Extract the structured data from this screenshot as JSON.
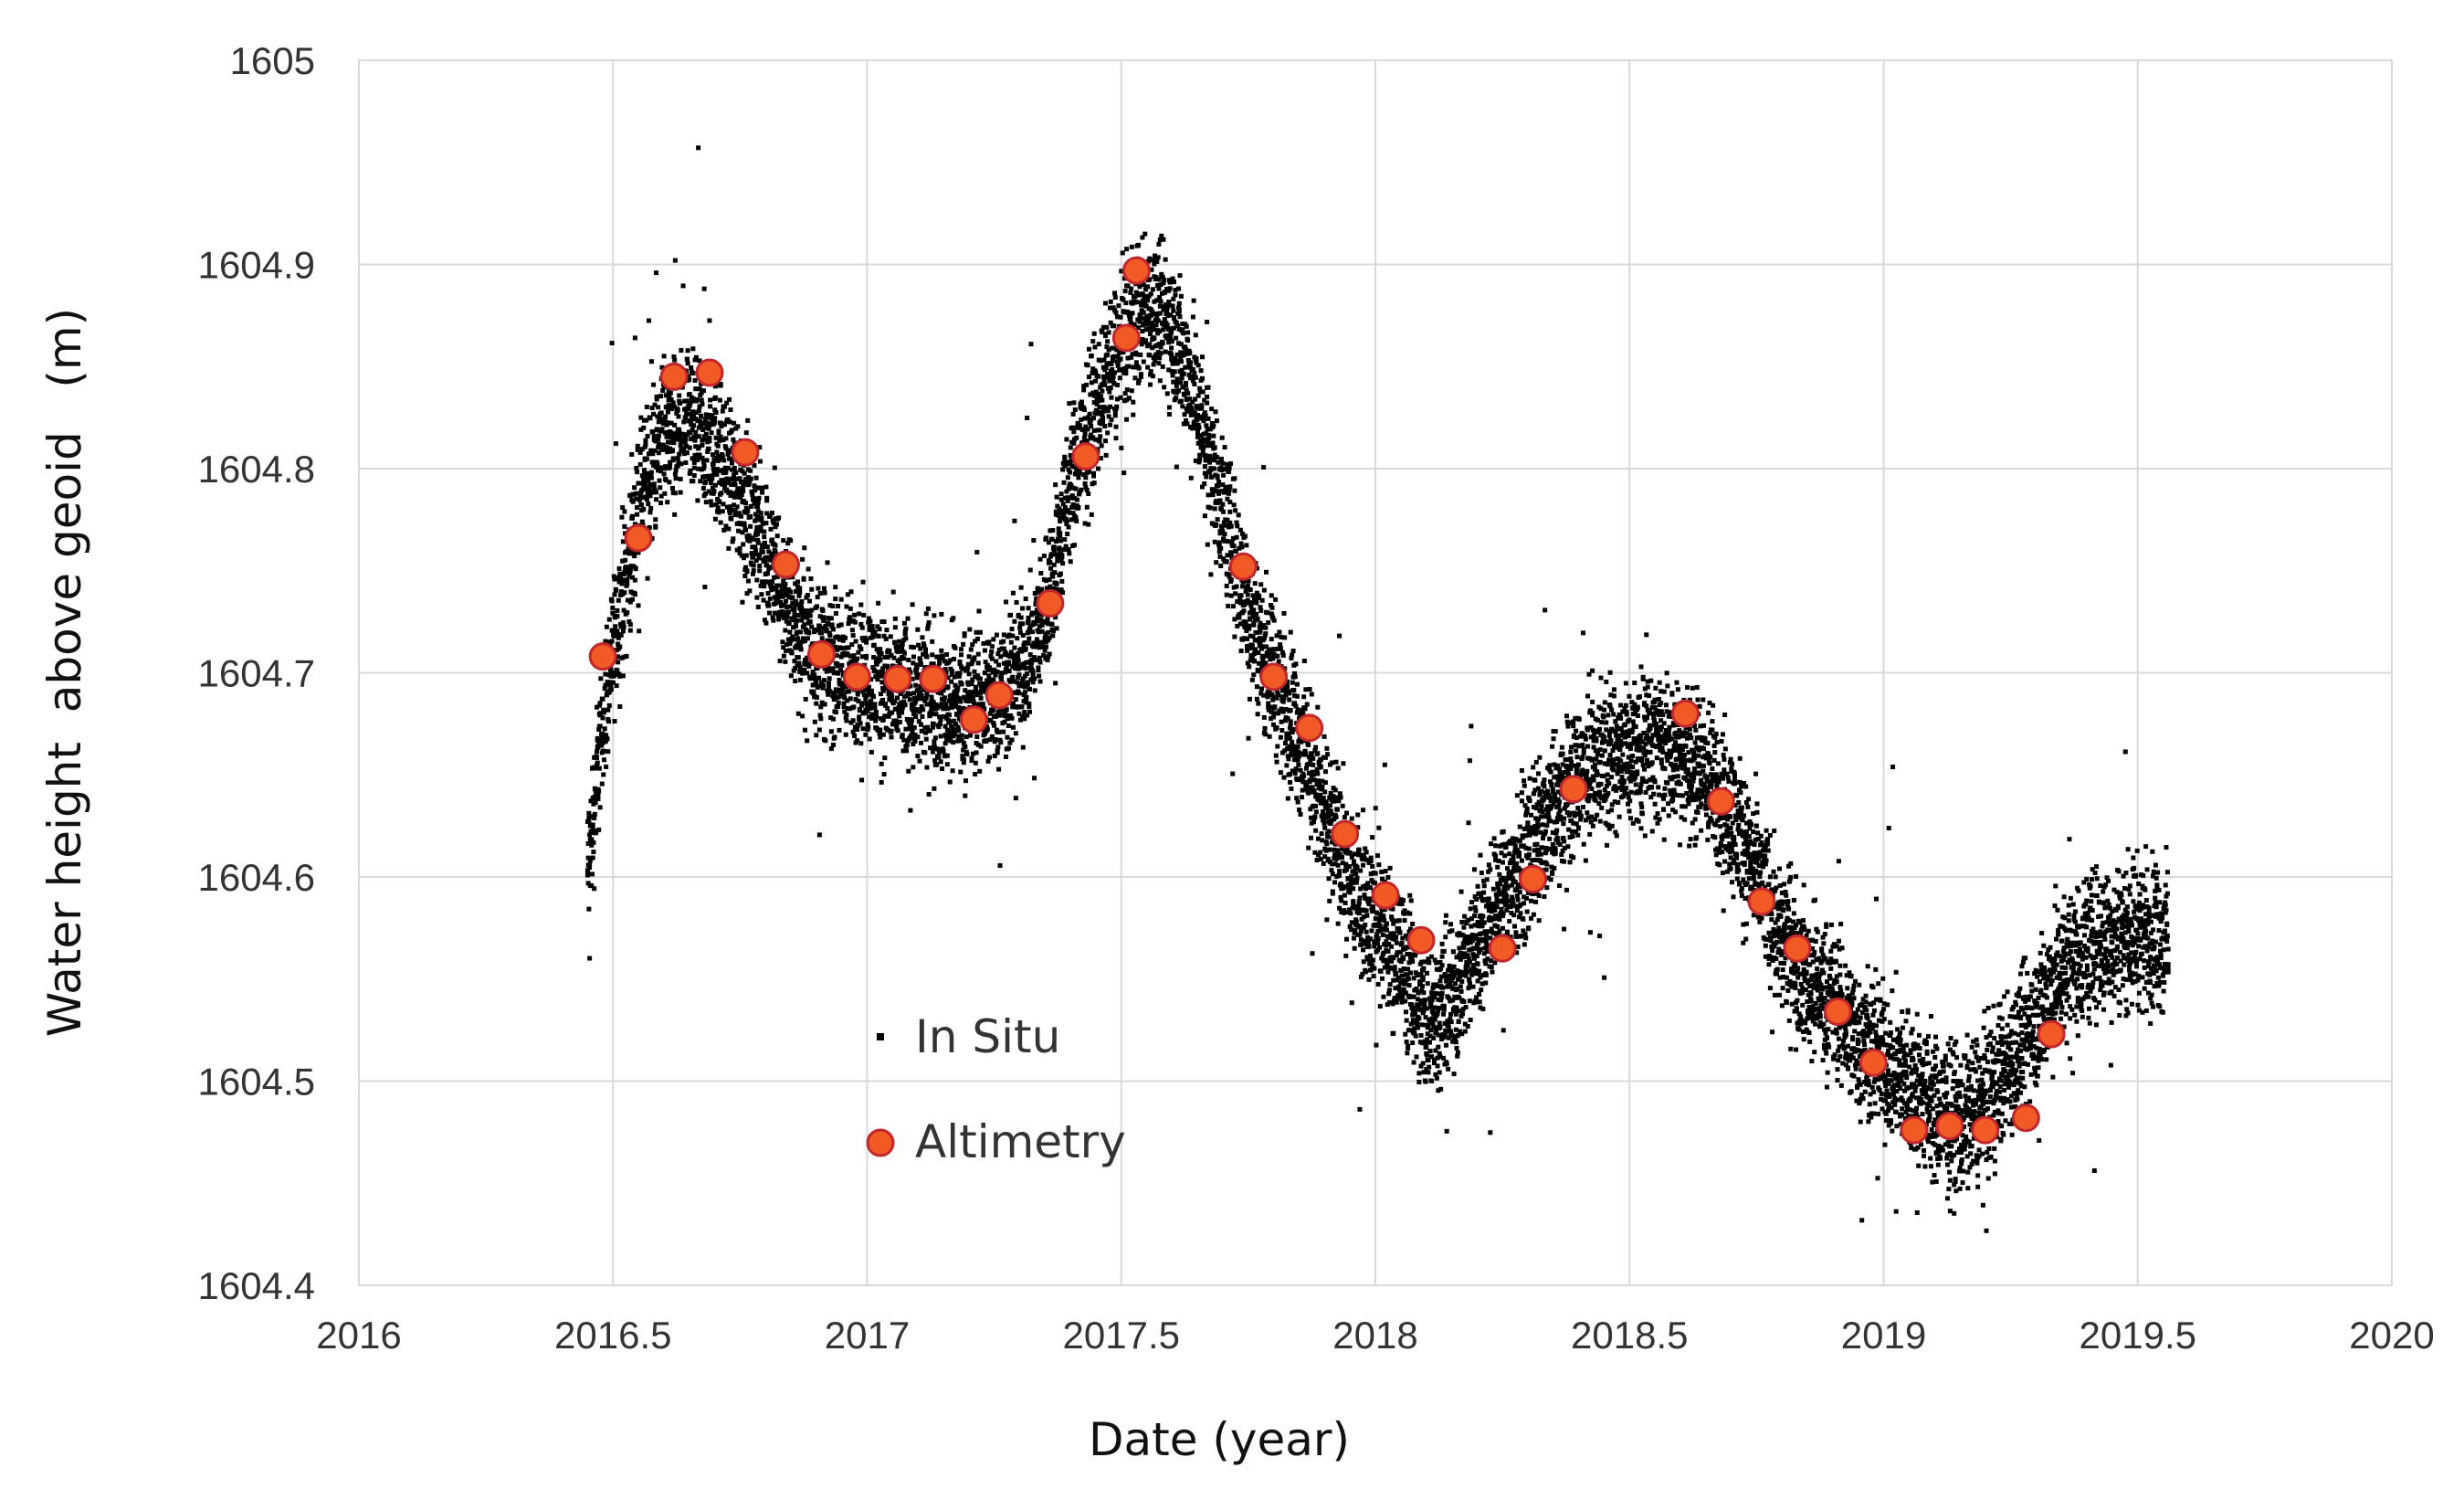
{
  "chart_data": {
    "type": "scatter",
    "title": "",
    "xlabel": "Date (year)",
    "ylabel": "Water height  above geoid   (m)",
    "xlim": [
      2016,
      2020
    ],
    "ylim": [
      1604.4,
      1605
    ],
    "x_ticks": [
      2016,
      2016.5,
      2017,
      2017.5,
      2018,
      2018.5,
      2019,
      2019.5,
      2020
    ],
    "x_tick_labels": [
      "2016",
      "2016.5",
      "2017",
      "2017.5",
      "2018",
      "2018.5",
      "2019",
      "2019.5",
      "2020"
    ],
    "y_ticks": [
      1604.4,
      1604.5,
      1604.6,
      1604.7,
      1604.8,
      1604.9,
      1605
    ],
    "y_tick_labels": [
      "1604.4",
      "1604.5",
      "1604.6",
      "1604.7",
      "1604.8",
      "1604.9",
      "1605"
    ],
    "grid": true,
    "legend_position": "center-left",
    "colors": {
      "in_situ": "#000000",
      "altimetry_fill": "#f15a24",
      "altimetry_edge": "#c1272d"
    },
    "series": [
      {
        "name": "In Situ",
        "marker": "small-square",
        "trend": {
          "x": [
            2016.45,
            2016.48,
            2016.52,
            2016.56,
            2016.6,
            2016.65,
            2016.7,
            2016.75,
            2016.8,
            2016.85,
            2016.9,
            2016.95,
            2017.0,
            2017.05,
            2017.1,
            2017.15,
            2017.2,
            2017.25,
            2017.3,
            2017.35,
            2017.4,
            2017.45,
            2017.5,
            2017.55,
            2017.6,
            2017.65,
            2017.7,
            2017.75,
            2017.8,
            2017.85,
            2017.9,
            2017.95,
            2018.0,
            2018.05,
            2018.1,
            2018.15,
            2018.2,
            2018.25,
            2018.3,
            2018.35,
            2018.4,
            2018.45,
            2018.5,
            2018.55,
            2018.6,
            2018.65,
            2018.7,
            2018.75,
            2018.8,
            2018.85,
            2018.9,
            2018.95,
            2019.0,
            2019.05,
            2019.1,
            2019.15,
            2019.2,
            2019.25,
            2019.3,
            2019.35,
            2019.4,
            2019.45,
            2019.5,
            2019.56
          ],
          "y": [
            1604.6,
            1604.68,
            1604.74,
            1604.79,
            1604.82,
            1604.82,
            1604.81,
            1604.79,
            1604.76,
            1604.73,
            1604.71,
            1604.7,
            1604.7,
            1604.69,
            1604.69,
            1604.685,
            1604.685,
            1604.69,
            1604.7,
            1604.73,
            1604.79,
            1604.83,
            1604.86,
            1604.88,
            1604.87,
            1604.83,
            1604.78,
            1604.73,
            1604.7,
            1604.67,
            1604.63,
            1604.6,
            1604.58,
            1604.56,
            1604.53,
            1604.54,
            1604.57,
            1604.59,
            1604.61,
            1604.63,
            1604.65,
            1604.66,
            1604.66,
            1604.665,
            1604.66,
            1604.65,
            1604.63,
            1604.6,
            1604.57,
            1604.55,
            1604.54,
            1604.52,
            1604.51,
            1604.5,
            1604.485,
            1604.48,
            1604.49,
            1604.51,
            1604.53,
            1604.555,
            1604.565,
            1604.57,
            1604.575,
            1604.57
          ]
        },
        "spread_m": 0.035
      },
      {
        "name": "Altimetry",
        "marker": "circle",
        "x": [
          2016.48,
          2016.55,
          2016.62,
          2016.69,
          2016.76,
          2016.84,
          2016.91,
          2016.98,
          2017.06,
          2017.13,
          2017.21,
          2017.26,
          2017.36,
          2017.43,
          2017.51,
          2017.53,
          2017.74,
          2017.8,
          2017.87,
          2017.94,
          2018.02,
          2018.09,
          2018.25,
          2018.31,
          2018.39,
          2018.61,
          2018.68,
          2018.76,
          2018.83,
          2018.91,
          2018.98,
          2019.06,
          2019.13,
          2019.2,
          2019.28,
          2019.33
        ],
        "y": [
          1604.708,
          1604.766,
          1604.845,
          1604.847,
          1604.808,
          1604.753,
          1604.709,
          1604.698,
          1604.697,
          1604.697,
          1604.677,
          1604.689,
          1604.734,
          1604.806,
          1604.864,
          1604.897,
          1604.752,
          1604.698,
          1604.673,
          1604.621,
          1604.591,
          1604.569,
          1604.565,
          1604.599,
          1604.643,
          1604.68,
          1604.637,
          1604.588,
          1604.565,
          1604.534,
          1604.509,
          1604.476,
          1604.478,
          1604.476,
          1604.482,
          1604.523
        ]
      }
    ]
  }
}
